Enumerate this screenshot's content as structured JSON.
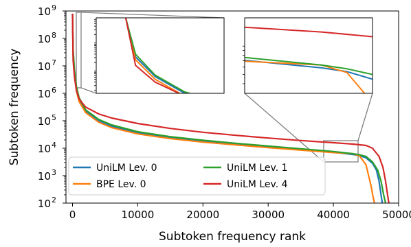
{
  "chart_data": {
    "type": "line",
    "xlabel": "Subtoken frequency rank",
    "ylabel": "Subtoken frequency",
    "xlim": [
      -1000,
      50000
    ],
    "ylim_log10": [
      2,
      9
    ],
    "y_scale": "log",
    "x_ticks": [
      0,
      10000,
      20000,
      30000,
      40000,
      50000
    ],
    "x_tick_labels": [
      "0",
      "10000",
      "20000",
      "30000",
      "40000",
      "50000"
    ],
    "y_ticks": [
      2,
      3,
      4,
      5,
      6,
      7,
      8,
      9
    ],
    "y_tick_labels": [
      "10",
      "10",
      "10",
      "10",
      "10",
      "10",
      "10",
      "10"
    ],
    "y_tick_exponents": [
      "2",
      "3",
      "4",
      "5",
      "6",
      "7",
      "8",
      "9"
    ],
    "legend": {
      "placement": "lower-left",
      "ncol": 2,
      "entries": [
        "UniLM Lev. 0",
        "BPE Lev. 0",
        "UniLM Lev. 1",
        "UniLM Lev. 4"
      ]
    },
    "series": [
      {
        "name": "UniLM Lev. 0",
        "color": "#1f77b4",
        "x": [
          0,
          100,
          300,
          600,
          1000,
          2000,
          4000,
          6000,
          10000,
          15000,
          20000,
          25000,
          30000,
          35000,
          40000,
          43000,
          44000,
          45000,
          46000,
          46600,
          47000,
          47300,
          47500
        ],
        "log10_y": [
          8.9,
          7.5,
          6.8,
          6.2,
          5.8,
          5.35,
          5.0,
          4.8,
          4.55,
          4.38,
          4.25,
          4.15,
          4.05,
          3.95,
          3.85,
          3.77,
          3.73,
          3.65,
          3.45,
          3.2,
          2.8,
          2.3,
          2.0
        ]
      },
      {
        "name": "BPE Lev. 0",
        "color": "#ff7f0e",
        "x": [
          0,
          100,
          300,
          600,
          1000,
          2000,
          4000,
          6000,
          10000,
          15000,
          20000,
          25000,
          30000,
          35000,
          40000,
          43000,
          44000,
          45000,
          45400,
          45800,
          46100,
          46300
        ],
        "log10_y": [
          8.9,
          7.4,
          6.7,
          6.1,
          5.7,
          5.3,
          4.95,
          4.75,
          4.52,
          4.35,
          4.22,
          4.12,
          4.02,
          3.93,
          3.84,
          3.8,
          3.72,
          3.4,
          3.0,
          2.6,
          2.2,
          2.0
        ]
      },
      {
        "name": "UniLM Lev. 1",
        "color": "#2ca02c",
        "x": [
          0,
          100,
          300,
          600,
          1000,
          2000,
          4000,
          6000,
          10000,
          15000,
          20000,
          25000,
          30000,
          35000,
          40000,
          43000,
          44000,
          45000,
          46000,
          46800,
          47300,
          47700,
          48000
        ],
        "log10_y": [
          8.9,
          7.6,
          6.85,
          6.25,
          5.85,
          5.4,
          5.05,
          4.85,
          4.6,
          4.42,
          4.29,
          4.18,
          4.08,
          3.98,
          3.88,
          3.8,
          3.76,
          3.7,
          3.5,
          3.2,
          2.8,
          2.3,
          2.0
        ]
      },
      {
        "name": "UniLM Lev. 4",
        "color": "#d62728",
        "x": [
          0,
          100,
          300,
          600,
          1000,
          2000,
          4000,
          6000,
          10000,
          15000,
          20000,
          25000,
          30000,
          35000,
          40000,
          43000,
          45000,
          46000,
          47000,
          47600,
          48000,
          48300,
          48500
        ],
        "log10_y": [
          8.9,
          7.2,
          6.6,
          6.1,
          5.8,
          5.5,
          5.25,
          5.1,
          4.9,
          4.72,
          4.58,
          4.47,
          4.37,
          4.28,
          4.2,
          4.15,
          4.1,
          4.0,
          3.7,
          3.3,
          2.8,
          2.3,
          2.0
        ]
      }
    ],
    "zoom_insets": [
      {
        "placement": "upper-left",
        "source_xlim": [
          -300,
          1000
        ],
        "source_log10_ylim": [
          6.2,
          8.9
        ]
      },
      {
        "placement": "upper-right",
        "source_xlim": [
          40000,
          45000
        ],
        "source_log10_ylim": [
          3.5,
          4.3
        ]
      }
    ]
  }
}
